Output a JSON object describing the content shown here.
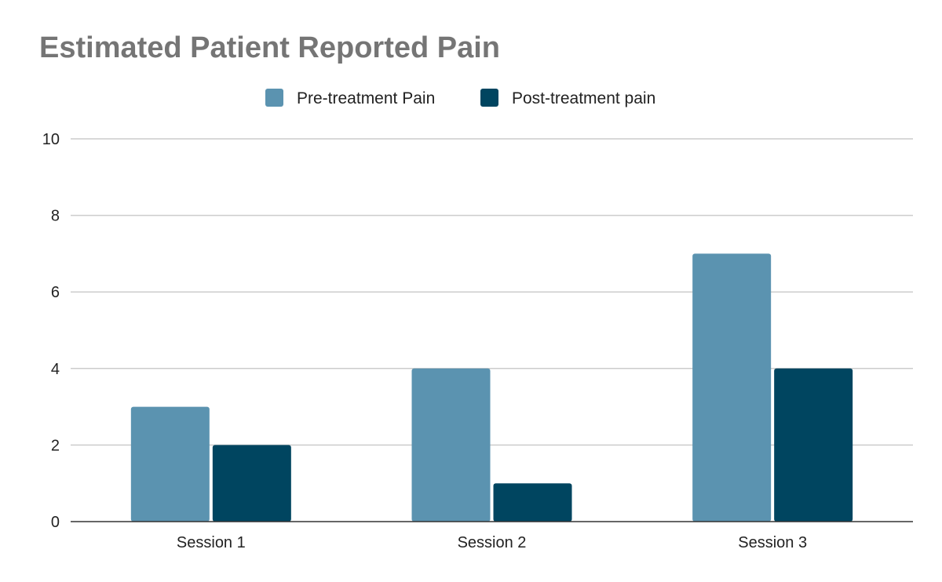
{
  "chart_data": {
    "type": "bar",
    "title": "Estimated Patient Reported Pain",
    "categories": [
      "Session 1",
      "Session 2",
      "Session 3"
    ],
    "series": [
      {
        "name": "Pre-treatment Pain",
        "values": [
          3,
          4,
          7
        ],
        "color": "#5b93b0"
      },
      {
        "name": "Post-treatment pain",
        "values": [
          2,
          1,
          4
        ],
        "color": "#004560"
      }
    ],
    "xlabel": "",
    "ylabel": "",
    "ylim": [
      0,
      10
    ],
    "yticks": [
      0,
      2,
      4,
      6,
      8,
      10
    ],
    "grid": true,
    "legend_position": "top"
  }
}
